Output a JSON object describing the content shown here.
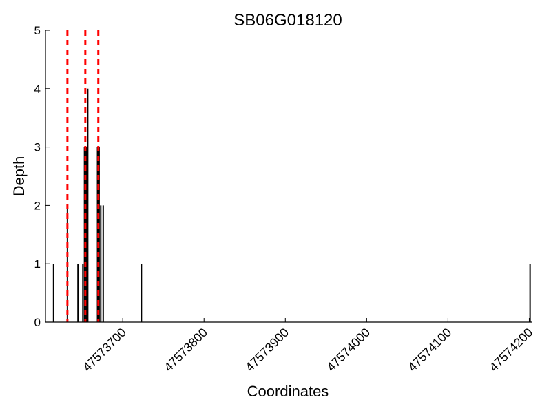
{
  "chart_data": {
    "type": "bar",
    "title": "SB06G018120",
    "xlabel": "Coordinates",
    "ylabel": "Depth",
    "xlim": [
      47573605,
      47574203
    ],
    "ylim": [
      0,
      5
    ],
    "yticks": [
      0,
      1,
      2,
      3,
      4,
      5
    ],
    "xticks": [
      47573700,
      47573800,
      47573900,
      47574000,
      47574100,
      47574200
    ],
    "x_tick_labels": [
      "47573700",
      "47573800",
      "47573900",
      "47574000",
      "47574100",
      "47574200"
    ],
    "grid": false,
    "bar_color": "#000000",
    "marker_color": "#ff0000",
    "bars": [
      {
        "x": 47573615,
        "y": 1
      },
      {
        "x": 47573632,
        "y": 2
      },
      {
        "x": 47573645,
        "y": 1
      },
      {
        "x": 47573651,
        "y": 1
      },
      {
        "x": 47573653,
        "y": 3
      },
      {
        "x": 47573655,
        "y": 3
      },
      {
        "x": 47573657,
        "y": 4
      },
      {
        "x": 47573669,
        "y": 3
      },
      {
        "x": 47573671,
        "y": 3
      },
      {
        "x": 47573673,
        "y": 2
      },
      {
        "x": 47573676,
        "y": 2
      },
      {
        "x": 47573723,
        "y": 1
      },
      {
        "x": 47574201,
        "y": 1
      }
    ],
    "marker_lines": [
      47573632,
      47573654,
      47573670
    ]
  }
}
